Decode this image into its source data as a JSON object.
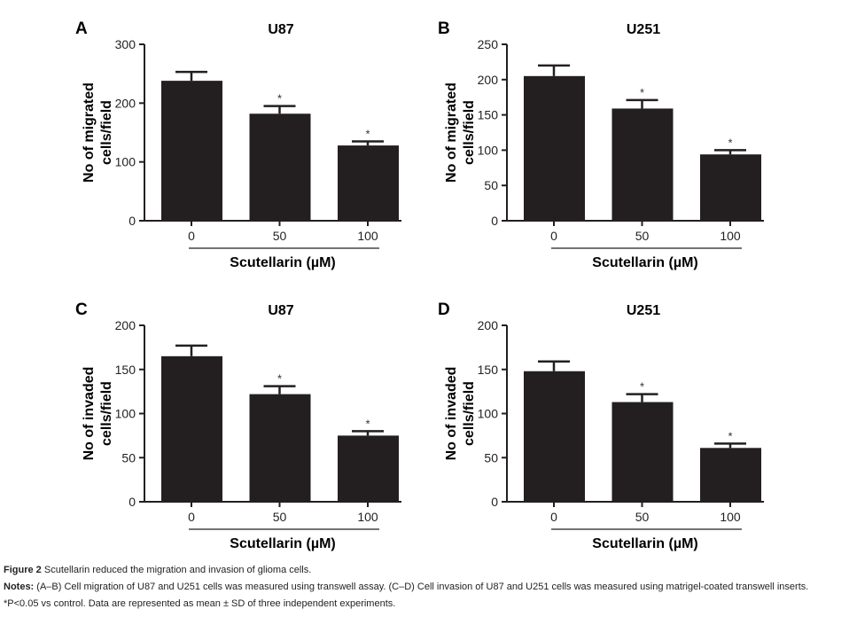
{
  "chart_data": [
    {
      "panel": "A",
      "type": "bar",
      "title": "U87",
      "ylabel_lines": [
        "No of migrated",
        "cells/field"
      ],
      "xlabel": "Scutellarin (µM)",
      "categories": [
        "0",
        "50",
        "100"
      ],
      "values": [
        238,
        182,
        128
      ],
      "errors": [
        15,
        13,
        7
      ],
      "significance": [
        "",
        "*",
        "*"
      ],
      "ylim": [
        0,
        300
      ],
      "yticks": [
        0,
        100,
        200,
        300
      ],
      "grid": false,
      "bar_color": "#231f20"
    },
    {
      "panel": "B",
      "type": "bar",
      "title": "U251",
      "ylabel_lines": [
        "No of migrated",
        "cells/field"
      ],
      "xlabel": "Scutellarin (µM)",
      "categories": [
        "0",
        "50",
        "100"
      ],
      "values": [
        205,
        159,
        94
      ],
      "errors": [
        15,
        12,
        6
      ],
      "significance": [
        "",
        "*",
        "*"
      ],
      "ylim": [
        0,
        250
      ],
      "yticks": [
        0,
        50,
        100,
        150,
        200,
        250
      ],
      "grid": false,
      "bar_color": "#231f20"
    },
    {
      "panel": "C",
      "type": "bar",
      "title": "U87",
      "ylabel_lines": [
        "No of invaded",
        "cells/field"
      ],
      "xlabel": "Scutellarin (µM)",
      "categories": [
        "0",
        "50",
        "100"
      ],
      "values": [
        165,
        122,
        75
      ],
      "errors": [
        12,
        9,
        5
      ],
      "significance": [
        "",
        "*",
        "*"
      ],
      "ylim": [
        0,
        200
      ],
      "yticks": [
        0,
        50,
        100,
        150,
        200
      ],
      "grid": false,
      "bar_color": "#231f20"
    },
    {
      "panel": "D",
      "type": "bar",
      "title": "U251",
      "ylabel_lines": [
        "No of invaded",
        "cells/field"
      ],
      "xlabel": "Scutellarin (µM)",
      "categories": [
        "0",
        "50",
        "100"
      ],
      "values": [
        148,
        113,
        61
      ],
      "errors": [
        11,
        9,
        5
      ],
      "significance": [
        "",
        "*",
        "*"
      ],
      "ylim": [
        0,
        200
      ],
      "yticks": [
        0,
        50,
        100,
        150,
        200
      ],
      "grid": false,
      "bar_color": "#231f20"
    }
  ],
  "caption": {
    "figure_label": "Figure 2",
    "figure_title": "Scutellarin reduced the migration and invasion of glioma cells.",
    "notes_label": "Notes:",
    "notes_text": "(A–B) Cell migration of U87 and U251 cells was measured using transwell assay. (C–D) Cell invasion of U87 and U251 cells was measured using matrigel-coated transwell inserts. *P<0.05 vs control. Data are represented as mean ± SD of three independent experiments."
  }
}
